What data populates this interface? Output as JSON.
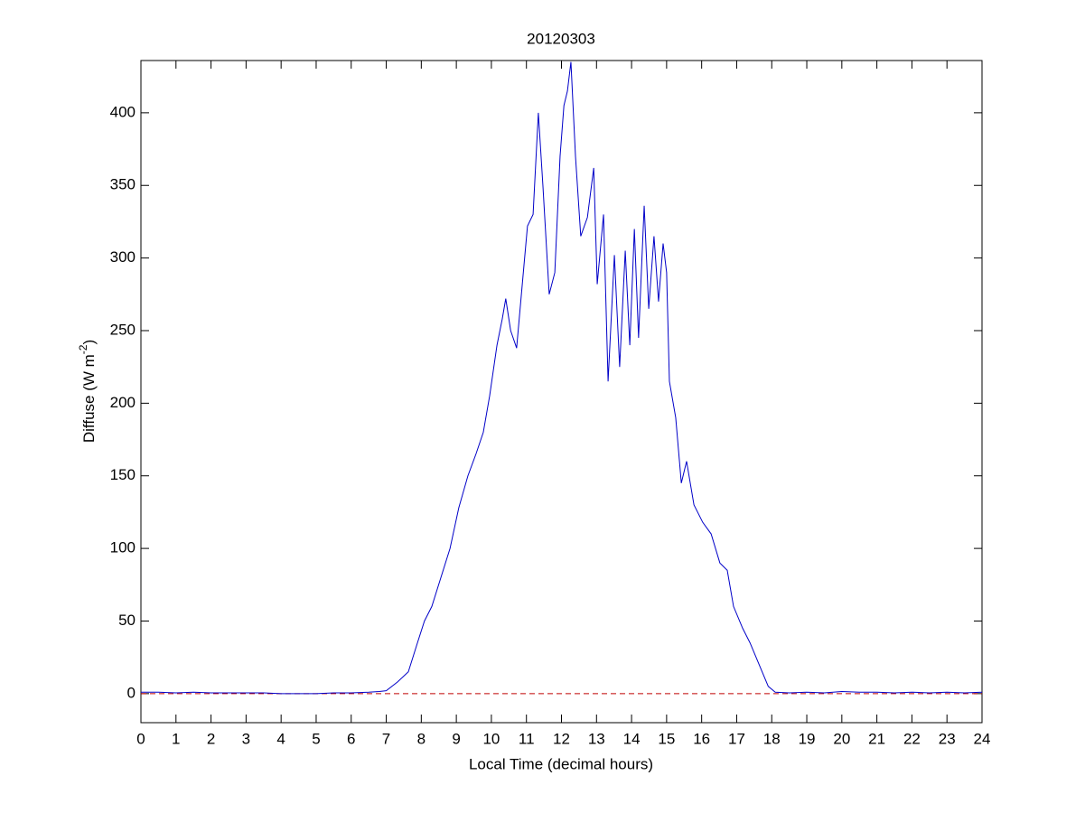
{
  "chart_data": {
    "type": "line",
    "title": "20120303",
    "xlabel": "Local Time (decimal hours)",
    "ylabel": {
      "text": "Diffuse (W m",
      "superscript": "-2",
      "suffix": ")"
    },
    "x": [
      0,
      0.5,
      1,
      1.5,
      2,
      2.5,
      3,
      3.5,
      4,
      4.5,
      5,
      5.5,
      6,
      6.5,
      6.8,
      7.0,
      7.32,
      7.63,
      7.89,
      8.09,
      8.3,
      8.56,
      8.82,
      9.07,
      9.33,
      9.56,
      9.77,
      9.95,
      10.16,
      10.31,
      10.41,
      10.55,
      10.72,
      10.93,
      11.03,
      11.19,
      11.34,
      11.47,
      11.65,
      11.81,
      11.96,
      12.07,
      12.17,
      12.27,
      12.4,
      12.55,
      12.74,
      12.92,
      13.02,
      13.2,
      13.33,
      13.51,
      13.66,
      13.82,
      13.95,
      14.08,
      14.2,
      14.36,
      14.49,
      14.64,
      14.77,
      14.9,
      15.0,
      15.08,
      15.26,
      15.42,
      15.57,
      15.78,
      16.03,
      16.27,
      16.52,
      16.73,
      16.91,
      17.17,
      17.38,
      17.64,
      17.9,
      18.1,
      18.5,
      19,
      19.5,
      20,
      20.5,
      21,
      21.5,
      22,
      22.5,
      23,
      23.5,
      24
    ],
    "values": [
      1,
      1,
      0.5,
      1,
      0.5,
      0.5,
      0.5,
      0.5,
      0,
      0,
      0,
      0.5,
      0.5,
      1,
      1.5,
      2,
      8,
      15,
      35,
      50,
      60,
      80,
      100,
      128,
      150,
      165,
      180,
      205,
      240,
      258,
      272,
      250,
      238,
      295,
      322,
      330,
      400,
      350,
      275,
      290,
      370,
      405,
      415,
      435,
      370,
      315,
      328,
      362,
      282,
      330,
      215,
      302,
      225,
      305,
      240,
      320,
      245,
      336,
      265,
      315,
      270,
      310,
      290,
      215,
      190,
      145,
      160,
      130,
      118,
      110,
      90,
      85,
      60,
      45,
      35,
      20,
      5,
      1,
      0.5,
      1,
      0.5,
      1.5,
      1,
      1,
      0.5,
      1,
      0.5,
      1,
      0.5,
      1
    ],
    "color": "#0000c8",
    "reference_line": {
      "value": 0,
      "color": "#c00000",
      "style": "dashed"
    },
    "xlim": [
      0,
      24
    ],
    "xticks": [
      0,
      1,
      2,
      3,
      4,
      5,
      6,
      7,
      8,
      9,
      10,
      11,
      12,
      13,
      14,
      15,
      16,
      17,
      18,
      19,
      20,
      21,
      22,
      23,
      24
    ],
    "ylim": [
      -20,
      436
    ],
    "yticks": [
      0,
      50,
      100,
      150,
      200,
      250,
      300,
      350,
      400
    ],
    "grid": false
  }
}
